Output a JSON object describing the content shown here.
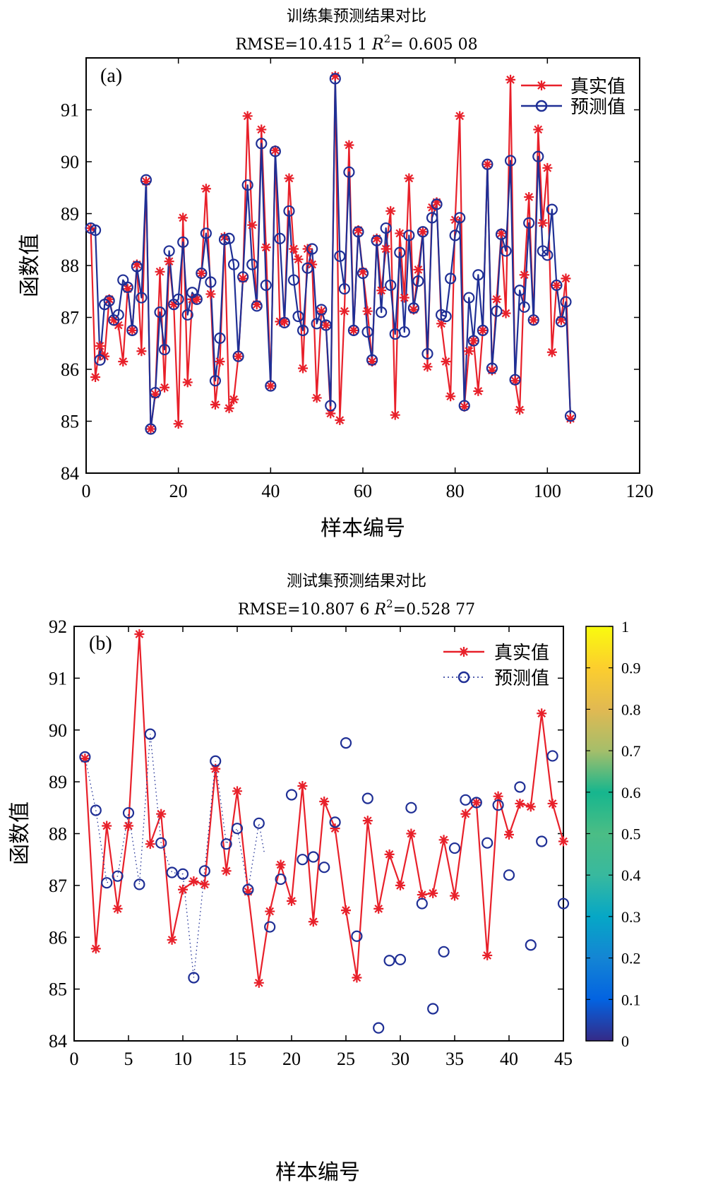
{
  "colors": {
    "true_series": "#e8202a",
    "pred_series": "#1f2f95"
  },
  "chart_data": [
    {
      "type": "line",
      "panel_label": "(a)",
      "title": "训练集预测结果对比",
      "subtitle_prefix": "RMSE=10.415 1 ",
      "subtitle_r": "R",
      "subtitle_sup": "2",
      "subtitle_suffix": "= 0.605 08",
      "xlabel": "样本编号",
      "ylabel": "函数值",
      "xlim": [
        0,
        120
      ],
      "ylim": [
        84,
        92
      ],
      "xticks": [
        0,
        20,
        40,
        60,
        80,
        100,
        120
      ],
      "yticks": [
        84,
        85,
        86,
        87,
        88,
        89,
        90,
        91
      ],
      "legend": {
        "position": "top-right",
        "true_label": "真实值",
        "pred_label": "预测值"
      },
      "pred_style": "solid",
      "series": [
        {
          "name": "真实值",
          "values": [
            88.72,
            85.85,
            86.45,
            86.25,
            87.35,
            86.95,
            86.85,
            86.15,
            87.55,
            86.75,
            88.02,
            86.35,
            89.62,
            84.85,
            85.52,
            87.88,
            85.65,
            88.08,
            87.25,
            84.95,
            88.92,
            85.75,
            87.35,
            87.35,
            87.85,
            89.48,
            87.45,
            85.32,
            86.15,
            88.55,
            85.25,
            85.42,
            86.25,
            87.75,
            90.88,
            88.78,
            87.25,
            90.62,
            88.35,
            85.68,
            90.22,
            86.92,
            86.92,
            89.68,
            88.32,
            88.12,
            86.02,
            88.32,
            88.02,
            85.45,
            87.12,
            86.85,
            85.15,
            91.65,
            85.02,
            87.12,
            90.32,
            86.75,
            88.68,
            87.88,
            87.12,
            86.15,
            88.52,
            87.52,
            88.32,
            89.05,
            85.12,
            88.62,
            87.38,
            89.68,
            87.15,
            87.92,
            88.65,
            86.05,
            89.12,
            89.22,
            86.88,
            86.15,
            85.48,
            88.88,
            90.88,
            85.28,
            86.35,
            86.55,
            85.58,
            86.75,
            89.95,
            85.98,
            87.35,
            88.62,
            87.08,
            91.58,
            85.78,
            85.22,
            87.82,
            89.32,
            86.95,
            90.62,
            88.82,
            89.88,
            86.33,
            87.62,
            86.95,
            87.75,
            85.05
          ]
        },
        {
          "name": "预测值",
          "values": [
            88.72,
            88.68,
            86.18,
            87.25,
            87.32,
            86.95,
            87.05,
            87.72,
            87.58,
            86.75,
            87.98,
            87.38,
            89.65,
            84.85,
            85.55,
            87.1,
            86.38,
            88.28,
            87.25,
            87.35,
            88.45,
            87.05,
            87.48,
            87.35,
            87.85,
            88.62,
            87.68,
            85.78,
            86.6,
            88.5,
            88.52,
            88.02,
            86.25,
            87.78,
            89.55,
            88.02,
            87.22,
            90.35,
            87.62,
            85.68,
            90.2,
            88.52,
            86.9,
            89.05,
            87.72,
            87.02,
            86.75,
            87.95,
            88.32,
            86.88,
            87.15,
            86.85,
            85.3,
            91.6,
            88.18,
            87.55,
            89.8,
            86.75,
            88.65,
            87.85,
            86.72,
            86.18,
            88.48,
            87.1,
            88.72,
            87.62,
            86.68,
            88.25,
            86.72,
            88.58,
            87.18,
            87.7,
            88.65,
            86.3,
            88.92,
            89.18,
            87.05,
            87.02,
            87.75,
            88.58,
            88.92,
            85.3,
            87.38,
            86.55,
            87.82,
            86.75,
            89.95,
            86.02,
            87.12,
            88.6,
            88.28,
            90.02,
            85.8,
            87.52,
            87.2,
            88.82,
            86.95,
            90.1,
            88.28,
            88.2,
            89.08,
            87.62,
            86.92,
            87.3,
            85.1
          ]
        }
      ]
    },
    {
      "type": "line",
      "panel_label": "(b)",
      "title": "测试集预测结果对比",
      "subtitle_prefix": "RMSE=10.807 6 ",
      "subtitle_r": "R",
      "subtitle_sup": "2",
      "subtitle_suffix": "=0.528 77",
      "xlabel": "样本编号",
      "ylabel": "函数值",
      "xlim": [
        0,
        45
      ],
      "ylim": [
        84,
        92
      ],
      "xticks": [
        0,
        5,
        10,
        15,
        20,
        25,
        30,
        35,
        40,
        45
      ],
      "yticks": [
        84,
        85,
        86,
        87,
        88,
        89,
        90,
        91,
        92
      ],
      "legend": {
        "position": "top-right",
        "true_label": "真实值",
        "pred_label": "预测值"
      },
      "pred_style": "dotted-partial",
      "pred_line_until": 17.5,
      "pred_line_end_value": 87.62,
      "colorbar": {
        "ticks": [
          "0",
          "0.1",
          "0.2",
          "0.3",
          "0.4",
          "0.5",
          "0.6",
          "0.7",
          "0.8",
          "0.9",
          "1"
        ]
      },
      "series": [
        {
          "name": "真实值",
          "values": [
            89.45,
            85.78,
            88.15,
            86.55,
            88.15,
            91.85,
            87.8,
            88.38,
            85.95,
            86.92,
            87.08,
            87.02,
            89.25,
            87.28,
            88.82,
            86.88,
            85.12,
            86.5,
            87.4,
            86.7,
            88.92,
            86.3,
            88.62,
            88.1,
            86.52,
            85.22,
            88.25,
            86.55,
            87.6,
            87.0,
            88.0,
            86.82,
            86.85,
            87.88,
            86.8,
            88.38,
            88.6,
            85.65,
            88.72,
            87.98,
            88.58,
            88.52,
            90.32,
            88.58,
            87.85
          ]
        },
        {
          "name": "预测值",
          "values": [
            89.48,
            88.45,
            87.05,
            87.18,
            88.4,
            87.02,
            89.92,
            87.82,
            87.25,
            87.22,
            85.22,
            87.28,
            89.4,
            87.8,
            88.1,
            86.92,
            88.2,
            86.2,
            87.12,
            88.75,
            87.5,
            87.55,
            87.35,
            88.22,
            89.75,
            86.02,
            88.68,
            84.25,
            85.55,
            85.57,
            88.5,
            86.65,
            84.62,
            85.72,
            87.72,
            88.65,
            88.6,
            87.82,
            88.55,
            87.2,
            88.9,
            85.85,
            87.85,
            89.5,
            86.65
          ]
        }
      ]
    }
  ]
}
